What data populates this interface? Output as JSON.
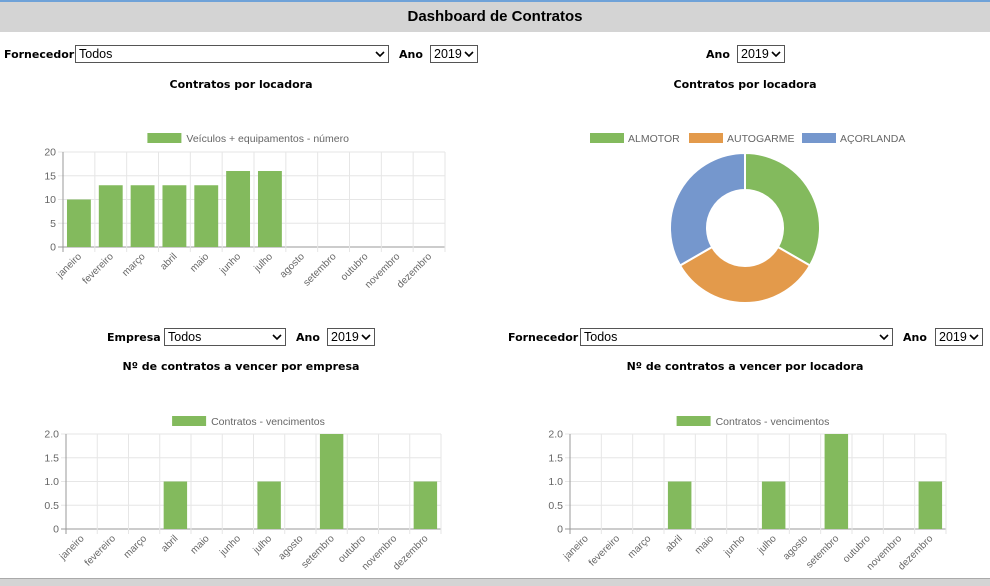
{
  "header": {
    "title": "Dashboard de Contratos"
  },
  "top_left": {
    "fornecedor_label": "Fornecedor",
    "fornecedor_value": "Todos",
    "ano_label": "Ano",
    "ano_value": "2019",
    "chart_title": "Contratos por locadora"
  },
  "top_right": {
    "ano_label": "Ano",
    "ano_value": "2019",
    "chart_title": "Contratos por locadora"
  },
  "bottom_left": {
    "empresa_label": "Empresa",
    "empresa_value": "Todos",
    "ano_label": "Ano",
    "ano_value": "2019",
    "chart_title": "Nº de contratos a vencer por empresa"
  },
  "bottom_right": {
    "fornecedor_label": "Fornecedor",
    "fornecedor_value": "Todos",
    "ano_label": "Ano",
    "ano_value": "2019",
    "chart_title": "Nº de contratos a vencer por locadora"
  },
  "colors": {
    "green": "#83ba5d",
    "orange": "#e39a4b",
    "blue": "#7597cd",
    "header_bg": "#d4d4d4"
  },
  "icons": {
    "select_arrow": "chevron-down-icon"
  },
  "chart_data": [
    {
      "id": "bar1",
      "type": "bar",
      "title": "",
      "categories": [
        "janeiro",
        "fevereiro",
        "março",
        "abril",
        "maio",
        "junho",
        "julho",
        "agosto",
        "setembro",
        "outubro",
        "novembro",
        "dezembro"
      ],
      "series": [
        {
          "name": "Veículos + equipamentos - número",
          "values": [
            10,
            13,
            13,
            13,
            13,
            16,
            16,
            null,
            null,
            null,
            null,
            null
          ]
        }
      ],
      "ylim": [
        0,
        20
      ],
      "yticks": [
        "0",
        "5",
        "10",
        "15",
        "20"
      ],
      "legend": "top",
      "grid": true
    },
    {
      "id": "pie1",
      "type": "pie",
      "title": "",
      "labels": [
        "ALMOTOR",
        "AUTOGARME",
        "AÇORLANDA"
      ],
      "values": [
        1,
        1,
        1
      ],
      "legend": "top",
      "donut": true
    },
    {
      "id": "bar2",
      "type": "bar",
      "title": "",
      "categories": [
        "janeiro",
        "fevereiro",
        "março",
        "abril",
        "maio",
        "junho",
        "julho",
        "agosto",
        "setembro",
        "outubro",
        "novembro",
        "dezembro"
      ],
      "series": [
        {
          "name": "Contratos - vencimentos",
          "values": [
            0,
            0,
            0,
            1,
            0,
            0,
            1,
            0,
            2,
            0,
            0,
            1
          ]
        }
      ],
      "ylim": [
        0,
        2
      ],
      "yticks": [
        "0",
        "0.5",
        "1.0",
        "1.5",
        "2.0"
      ],
      "legend": "top",
      "grid": true
    },
    {
      "id": "bar3",
      "type": "bar",
      "title": "",
      "categories": [
        "janeiro",
        "fevereiro",
        "março",
        "abril",
        "maio",
        "junho",
        "julho",
        "agosto",
        "setembro",
        "outubro",
        "novembro",
        "dezembro"
      ],
      "series": [
        {
          "name": "Contratos - vencimentos",
          "values": [
            0,
            0,
            0,
            1,
            0,
            0,
            1,
            0,
            2,
            0,
            0,
            1
          ]
        }
      ],
      "ylim": [
        0,
        2
      ],
      "yticks": [
        "0",
        "0.5",
        "1.0",
        "1.5",
        "2.0"
      ],
      "legend": "top",
      "grid": true
    }
  ]
}
